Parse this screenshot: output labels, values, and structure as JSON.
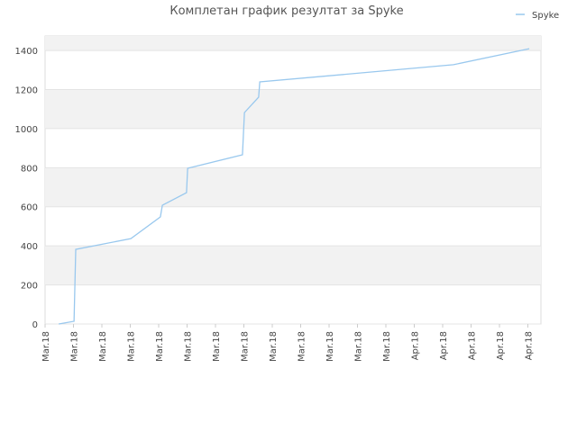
{
  "chart_data": {
    "type": "line",
    "title": "Комплетан график резултат за Spyke",
    "series": [
      {
        "name": "Spyke",
        "color": "#99c8ee",
        "x": [
          0.48,
          1.02,
          1.08,
          3.02,
          4.06,
          4.13,
          4.98,
          5.02,
          6.95,
          7.02,
          7.52,
          7.56,
          14.38,
          17.05
        ],
        "values": [
          0,
          14,
          382,
          437,
          548,
          608,
          672,
          797,
          866,
          1082,
          1161,
          1239,
          1327,
          1409
        ]
      }
    ],
    "xlim": [
      0,
      17.46
    ],
    "xticks": [
      {
        "value": 0,
        "label": "Mar.18"
      },
      {
        "value": 1,
        "label": "Mar.18"
      },
      {
        "value": 2,
        "label": "Mar.18"
      },
      {
        "value": 3,
        "label": "Mar.18"
      },
      {
        "value": 4,
        "label": "Mar.18"
      },
      {
        "value": 5,
        "label": "Mar.18"
      },
      {
        "value": 6,
        "label": "Mar.18"
      },
      {
        "value": 7,
        "label": "Mar.18"
      },
      {
        "value": 8,
        "label": "Mar.18"
      },
      {
        "value": 9,
        "label": "Mar.18"
      },
      {
        "value": 10,
        "label": "Mar.18"
      },
      {
        "value": 11,
        "label": "Mar.18"
      },
      {
        "value": 12,
        "label": "Mar.18"
      },
      {
        "value": 13,
        "label": "Apr.18"
      },
      {
        "value": 14,
        "label": "Apr.18"
      },
      {
        "value": 15,
        "label": "Apr.18"
      },
      {
        "value": 16,
        "label": "Apr.18"
      },
      {
        "value": 17,
        "label": "Apr.18"
      }
    ],
    "ylim": [
      0,
      1474
    ],
    "yticks": [
      0,
      200,
      400,
      600,
      800,
      1000,
      1200,
      1400
    ],
    "grid": true,
    "legend": "top-right"
  }
}
